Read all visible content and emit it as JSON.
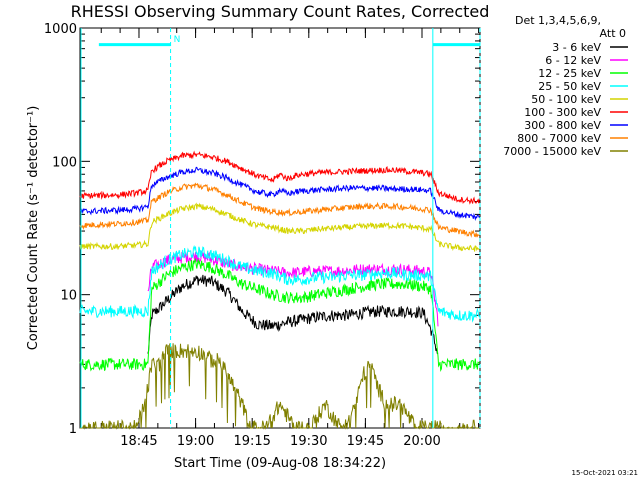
{
  "chart_data": {
    "type": "line",
    "title": "RHESSI Observing Summary Count Rates, Corrected",
    "xlabel": "Start Time (09-Aug-08 18:34:22)",
    "ylabel": "Corrected Count Rate (s⁻¹ detector⁻¹)",
    "yscale": "log",
    "ylim": [
      1,
      1000
    ],
    "xlim_minutes": [
      0,
      90
    ],
    "x_ticks": [
      {
        "label": "18:45",
        "t": 10.63
      },
      {
        "label": "19:00",
        "t": 25.63
      },
      {
        "label": "19:15",
        "t": 40.63
      },
      {
        "label": "19:30",
        "t": 55.63
      },
      {
        "label": "19:45",
        "t": 70.63
      },
      {
        "label": "20:00",
        "t": 85.63
      }
    ],
    "y_ticks": [
      {
        "label": "1",
        "v": 1
      },
      {
        "label": "10",
        "v": 10
      },
      {
        "label": "100",
        "v": 100
      },
      {
        "label": "1000",
        "v": 1000
      }
    ],
    "legend_header": [
      "Det 1,3,4,5,6,9,",
      "Att 0"
    ],
    "legend_position": "right",
    "night_marker_label": "N",
    "timestamp": "15-Oct-2021 03:21",
    "flag_bars": [
      {
        "color": "#00ffff",
        "level": 750,
        "t_start": 0,
        "t_end": 19
      },
      {
        "color": "#00ffff",
        "level": 750,
        "t_start": 88.5,
        "t_end": 101
      }
    ],
    "vlines": [
      {
        "color": "#00ffff",
        "t": 19,
        "style": "dashed"
      },
      {
        "color": "#00ffff",
        "t": 88.5,
        "style": "solid"
      },
      {
        "color": "#00ffff",
        "t": 101,
        "style": "dashed"
      }
    ],
    "series": [
      {
        "name": "3 - 6 keV",
        "color": "#000000",
        "x": [
          13,
          14,
          18,
          22,
          26,
          30,
          34,
          36,
          38,
          42,
          46,
          50,
          54,
          58,
          62,
          66,
          70,
          74,
          78,
          82,
          86,
          88,
          90
        ],
        "y": [
          3.5,
          7,
          9,
          11.5,
          13,
          12.5,
          10.5,
          9,
          7.5,
          6,
          5.8,
          6.2,
          6.5,
          6.8,
          7,
          7,
          7.3,
          7.5,
          7.5,
          7.5,
          7.3,
          5.5,
          3.5
        ]
      },
      {
        "name": "6 - 12 keV",
        "color": "#ff00ff",
        "x": [
          13,
          14,
          18,
          22,
          26,
          30,
          34,
          38,
          42,
          46,
          50,
          54,
          58,
          62,
          66,
          70,
          74,
          78,
          82,
          86,
          88,
          90
        ],
        "y": [
          10,
          16,
          18,
          19,
          19.5,
          18.5,
          17,
          16,
          15.5,
          15,
          14.5,
          14.8,
          15,
          15,
          15.2,
          15.5,
          15.5,
          15.5,
          15.3,
          15,
          14.5,
          6
        ]
      },
      {
        "name": "12 - 25 keV",
        "color": "#00ff00",
        "x": [
          -5,
          10,
          12,
          13,
          14,
          18,
          22,
          26,
          30,
          34,
          38,
          42,
          46,
          50,
          54,
          58,
          62,
          66,
          70,
          74,
          78,
          82,
          86,
          88,
          90,
          101
        ],
        "y": [
          3,
          3,
          3,
          3,
          11,
          14,
          16,
          17,
          16,
          14,
          12,
          11,
          10,
          9.5,
          9.5,
          10,
          10.5,
          11,
          11.5,
          12,
          12,
          12,
          11.5,
          11,
          3,
          3
        ]
      },
      {
        "name": "25 - 50 keV",
        "color": "#00ffff",
        "x": [
          -5,
          5,
          10,
          13,
          14,
          18,
          22,
          26,
          30,
          34,
          38,
          42,
          46,
          50,
          54,
          58,
          62,
          66,
          70,
          74,
          78,
          82,
          86,
          88,
          90,
          95,
          101
        ],
        "y": [
          7.5,
          7.5,
          7.5,
          7.5,
          15,
          18,
          20,
          21,
          20,
          18,
          16,
          15,
          14.5,
          13,
          13,
          13.5,
          13.5,
          14,
          14,
          14.5,
          14.5,
          14,
          14,
          13.5,
          7.5,
          7,
          7
        ]
      },
      {
        "name": "50 - 100 keV",
        "color": "#d4d400",
        "x": [
          -5,
          5,
          10,
          13,
          14,
          18,
          22,
          26,
          30,
          34,
          38,
          42,
          46,
          50,
          54,
          58,
          62,
          66,
          70,
          74,
          78,
          82,
          86,
          88,
          90,
          95,
          101
        ],
        "y": [
          23,
          23,
          23.5,
          24,
          35,
          40,
          44,
          46,
          44,
          40,
          36,
          33,
          32,
          30,
          30,
          31,
          31.5,
          32,
          32.5,
          33,
          33,
          32.5,
          31.5,
          31,
          24,
          22.5,
          22
        ]
      },
      {
        "name": "100 - 300 keV",
        "color": "#ff0000",
        "x": [
          -5,
          5,
          10,
          13,
          14,
          18,
          22,
          26,
          30,
          34,
          38,
          42,
          46,
          48,
          50,
          52,
          54,
          58,
          62,
          66,
          70,
          74,
          78,
          82,
          86,
          88,
          90,
          95,
          101
        ],
        "y": [
          55,
          56,
          58,
          60,
          85,
          100,
          110,
          112,
          108,
          100,
          88,
          78,
          72,
          80,
          74,
          78,
          80,
          82,
          83,
          84,
          85,
          86,
          86,
          84,
          82,
          80,
          58,
          52,
          50
        ]
      },
      {
        "name": "300 - 800 keV",
        "color": "#0000ff",
        "x": [
          -5,
          5,
          10,
          13,
          14,
          18,
          22,
          26,
          30,
          34,
          38,
          42,
          46,
          48,
          50,
          52,
          54,
          58,
          62,
          66,
          70,
          74,
          78,
          82,
          86,
          88,
          90,
          95,
          101
        ],
        "y": [
          42,
          43,
          44,
          46,
          66,
          76,
          83,
          86,
          82,
          75,
          66,
          59,
          56,
          61,
          57,
          59,
          60,
          61,
          62,
          63,
          63,
          63,
          62,
          62,
          61,
          60,
          43,
          40,
          38
        ]
      },
      {
        "name": "800 - 7000 keV",
        "color": "#ff8000",
        "x": [
          -5,
          5,
          10,
          13,
          14,
          18,
          22,
          26,
          30,
          34,
          38,
          42,
          46,
          50,
          54,
          58,
          62,
          66,
          70,
          74,
          78,
          82,
          86,
          88,
          90,
          95,
          101
        ],
        "y": [
          33,
          34,
          35,
          36,
          50,
          58,
          64,
          66,
          62,
          56,
          49,
          44,
          42,
          41,
          42,
          43,
          44,
          45,
          46,
          46,
          46,
          45,
          44,
          43,
          32,
          30,
          28
        ]
      },
      {
        "name": "7000 - 15000 keV",
        "color": "#808000",
        "x": [
          -5,
          0,
          5,
          10,
          12,
          13,
          14,
          16,
          18,
          20,
          22,
          26,
          28,
          30,
          32,
          34,
          36,
          38,
          40,
          44,
          48,
          52,
          56,
          60,
          64,
          68,
          70,
          72,
          74,
          76,
          80,
          84,
          88,
          90,
          101
        ],
        "y": [
          1,
          1,
          1,
          1,
          1.5,
          2,
          3,
          3,
          3.8,
          3.8,
          3.8,
          3.8,
          3.5,
          3.2,
          3.2,
          2.5,
          2,
          1.5,
          1,
          1,
          1.5,
          1,
          1,
          1.5,
          1,
          1.5,
          2.5,
          3,
          2,
          1.5,
          1.5,
          1,
          1,
          1,
          1
        ]
      }
    ]
  }
}
